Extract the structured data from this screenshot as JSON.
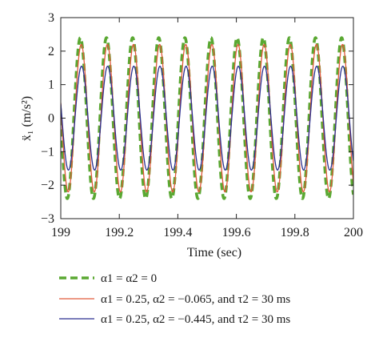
{
  "chart_data": {
    "type": "line",
    "xlabel": "Time (sec)",
    "ylabel": "ẍ₁ (m/s²)",
    "xlim": [
      199,
      200
    ],
    "ylim": [
      -3,
      3
    ],
    "xticks": [
      199,
      199.2,
      199.4,
      199.6,
      199.8,
      200
    ],
    "xtick_labels": [
      "199",
      "199.2",
      "199.4",
      "199.6",
      "199.8",
      "200"
    ],
    "yticks": [
      -3,
      -2,
      -1,
      0,
      1,
      2,
      3
    ],
    "ytick_labels": [
      "−3",
      "−2",
      "−1",
      "0",
      "1",
      "2",
      "3"
    ],
    "grid": false,
    "legend_position": "below plot",
    "series": [
      {
        "name": "α1 = α2 = 0",
        "color": "#5aa832",
        "style": "dashed",
        "amplitude": 2.4,
        "frequency_hz": 11.2,
        "phase_offset_s": 0.0
      },
      {
        "name": "α1 = 0.25, α2 = −0.065, and τ2 = 30 ms",
        "color": "#e05a3a",
        "style": "solid",
        "amplitude": 2.2,
        "frequency_hz": 11.2,
        "phase_offset_s": 0.003
      },
      {
        "name": "α1 = 0.25, α2 = −0.445, and τ2 = 30 ms",
        "color": "#2b2f8f",
        "style": "solid",
        "amplitude": 1.55,
        "frequency_hz": 11.2,
        "phase_offset_s": 0.004
      }
    ]
  }
}
